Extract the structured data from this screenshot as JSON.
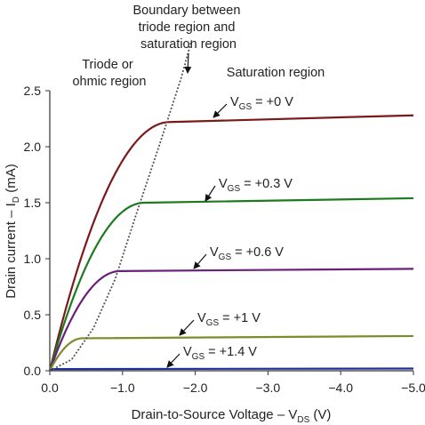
{
  "chart_data": {
    "type": "line",
    "xlabel": {
      "prefix": "Drain-to-Source Voltage – V",
      "sub": "DS",
      "suffix": " (V)"
    },
    "ylabel": {
      "prefix": "Drain current – I",
      "sub": "D",
      "suffix": " (mA)"
    },
    "xlim": [
      0,
      -5
    ],
    "ylim": [
      0,
      2.5
    ],
    "xticks": [
      0,
      -1,
      -2,
      -3,
      -4,
      -5
    ],
    "xtick_labels": [
      "0.0",
      "−1.0",
      "−2.0",
      "−3.0",
      "−4.0",
      "−5.0"
    ],
    "yticks": [
      0,
      0.5,
      1.0,
      1.5,
      2.0,
      2.5
    ],
    "ytick_labels": [
      "0.0",
      "0.5",
      "1.0",
      "1.5",
      "2.0",
      "2.5"
    ],
    "grid": false,
    "series": [
      {
        "prefix": "V",
        "sub": "GS",
        "suffix": " = +0 V",
        "color": "#7a1a1a",
        "vsat": -1.65,
        "isat": 2.22,
        "iend": 2.28
      },
      {
        "prefix": "V",
        "sub": "GS",
        "suffix": " = +0.3 V",
        "color": "#1e7a1e",
        "vsat": -1.3,
        "isat": 1.5,
        "iend": 1.54
      },
      {
        "prefix": "V",
        "sub": "GS",
        "suffix": " = +0.6 V",
        "color": "#6a1f7a",
        "vsat": -0.97,
        "isat": 0.89,
        "iend": 0.91
      },
      {
        "prefix": "V",
        "sub": "GS",
        "suffix": " = +1 V",
        "color": "#7f8a2a",
        "vsat": -0.45,
        "isat": 0.29,
        "iend": 0.31
      },
      {
        "prefix": "V",
        "sub": "GS",
        "suffix": " = +1.4 V",
        "color": "#1f2f9a",
        "vsat": -0.05,
        "isat": 0.015,
        "iend": 0.02
      }
    ],
    "boundary": {
      "x": [
        0,
        -0.3,
        -0.6,
        -0.9,
        -1.2,
        -1.5,
        -1.8,
        -1.95
      ],
      "y": [
        0,
        0.1,
        0.38,
        0.82,
        1.42,
        2.0,
        2.6,
        2.95
      ]
    },
    "annotations": {
      "boundary_label": [
        "Boundary between",
        "triode region and",
        "saturation region"
      ],
      "triode_label": [
        "Triode or",
        "ohmic region"
      ],
      "saturation_label": "Saturation region"
    }
  }
}
